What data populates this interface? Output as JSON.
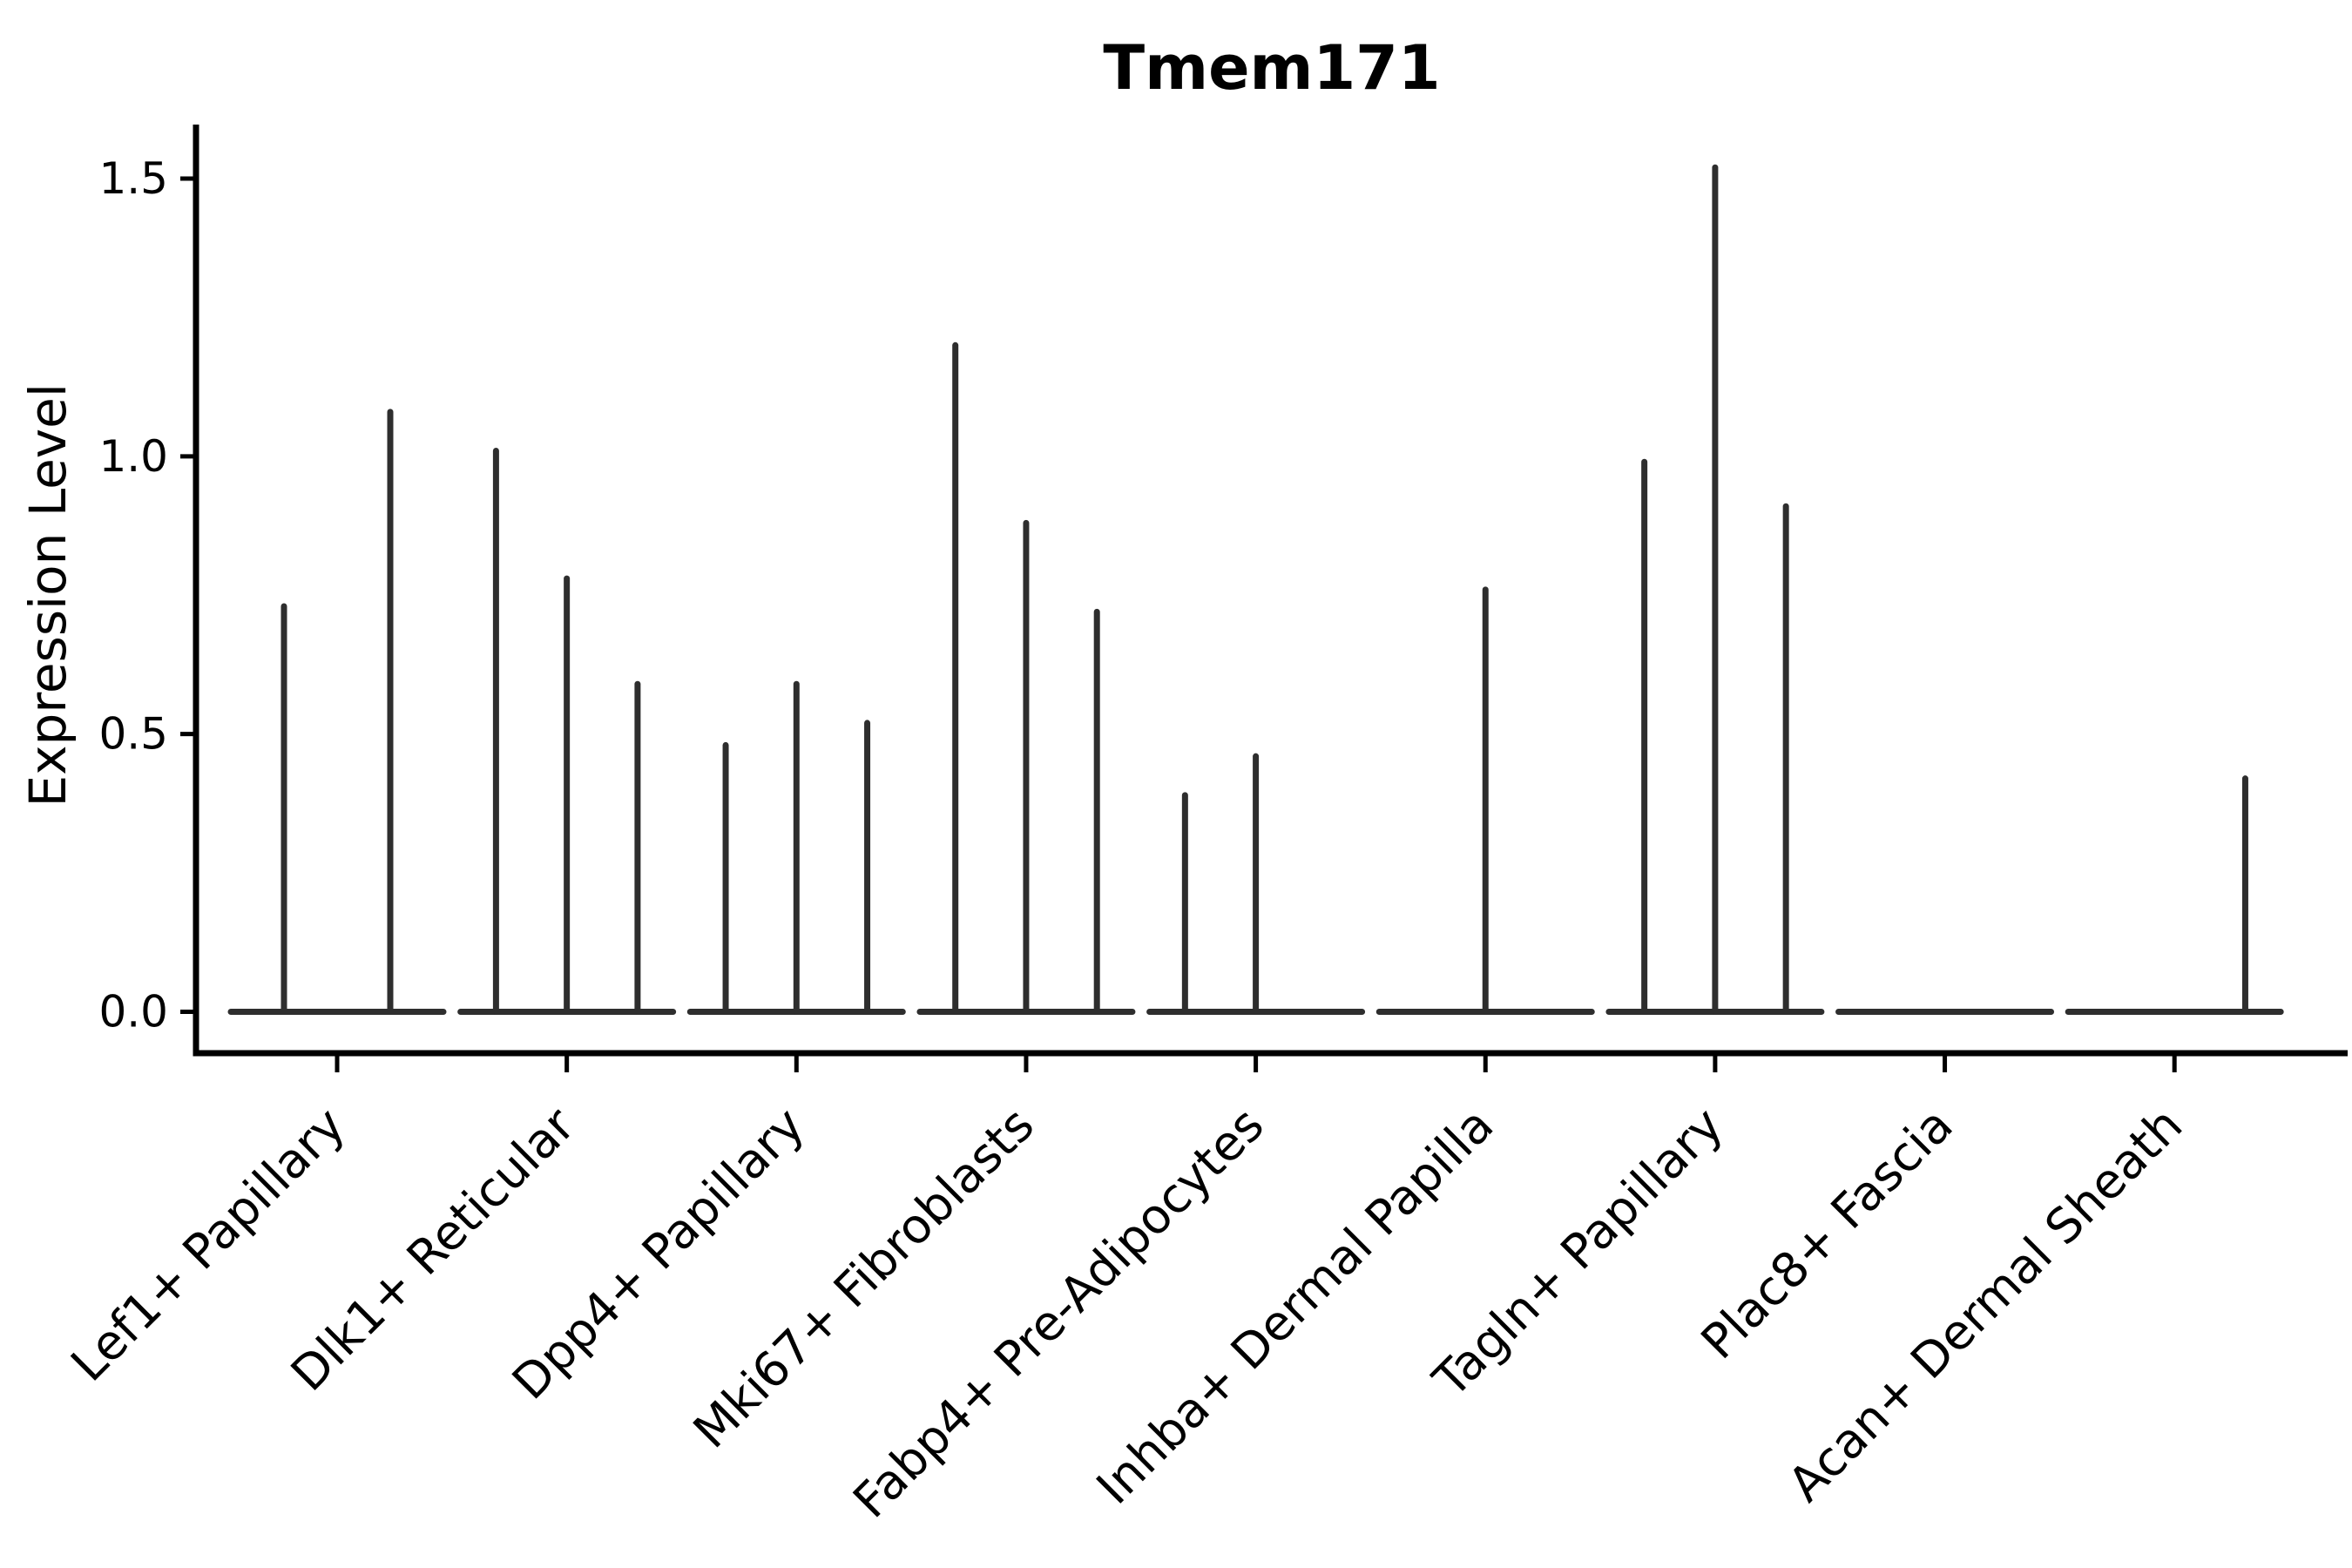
{
  "figure": {
    "title": "Tmem171",
    "background": "#ffffff"
  },
  "chart_data": {
    "type": "violin",
    "title": "Tmem171",
    "xlabel": "",
    "ylabel": "Expression Level",
    "ytick_labels": [
      "0.0",
      "0.5",
      "1.0",
      "1.5"
    ],
    "ytick_values": [
      0.0,
      0.5,
      1.0,
      1.5
    ],
    "ylim": [
      -0.075,
      1.6
    ],
    "grid": false,
    "legend": "none",
    "x_tick_rotation_deg": 45,
    "colors": {
      "violin_stroke": "#2e2e2e",
      "axis": "#000000",
      "text": "#000000",
      "background": "#ffffff"
    },
    "categories": [
      "Lef1+ Papillary",
      "Dlk1+ Reticular",
      "Dpp4+ Papillary",
      "Mki67+ Fibroblasts",
      "Fabp4+ Pre-Adipocytes",
      "Inhba+ Dermal Papilla",
      "Tagln+ Papillary",
      "Plac8+ Fascia",
      "Acan+ Dermal Sheath"
    ],
    "groups": [
      {
        "category": "Lef1+ Papillary",
        "violins": [
          {
            "offset": -0.25,
            "max": 0.73
          },
          {
            "offset": 0.25,
            "max": 1.08
          }
        ]
      },
      {
        "category": "Dlk1+ Reticular",
        "violins": [
          {
            "offset": -0.333,
            "max": 1.01
          },
          {
            "offset": 0.0,
            "max": 0.78
          },
          {
            "offset": 0.333,
            "max": 0.59
          }
        ]
      },
      {
        "category": "Dpp4+ Papillary",
        "violins": [
          {
            "offset": -0.333,
            "max": 0.48
          },
          {
            "offset": 0.0,
            "max": 0.59
          },
          {
            "offset": 0.333,
            "max": 0.52
          }
        ]
      },
      {
        "category": "Mki67+ Fibroblasts",
        "violins": [
          {
            "offset": -0.333,
            "max": 1.2
          },
          {
            "offset": 0.0,
            "max": 0.88
          },
          {
            "offset": 0.333,
            "max": 0.72
          }
        ]
      },
      {
        "category": "Fabp4+ Pre-Adipocytes",
        "violins": [
          {
            "offset": -0.333,
            "max": 0.39
          },
          {
            "offset": 0.0,
            "max": 0.46
          }
        ]
      },
      {
        "category": "Inhba+ Dermal Papilla",
        "violins": [
          {
            "offset": 0.0,
            "max": 0.76
          }
        ]
      },
      {
        "category": "Tagln+ Papillary",
        "violins": [
          {
            "offset": -0.333,
            "max": 0.99
          },
          {
            "offset": 0.0,
            "max": 1.52
          },
          {
            "offset": 0.333,
            "max": 0.91
          }
        ]
      },
      {
        "category": "Plac8+ Fascia",
        "violins": []
      },
      {
        "category": "Acan+ Dermal Sheath",
        "violins": [
          {
            "offset": 0.333,
            "max": 0.42
          }
        ]
      }
    ]
  }
}
